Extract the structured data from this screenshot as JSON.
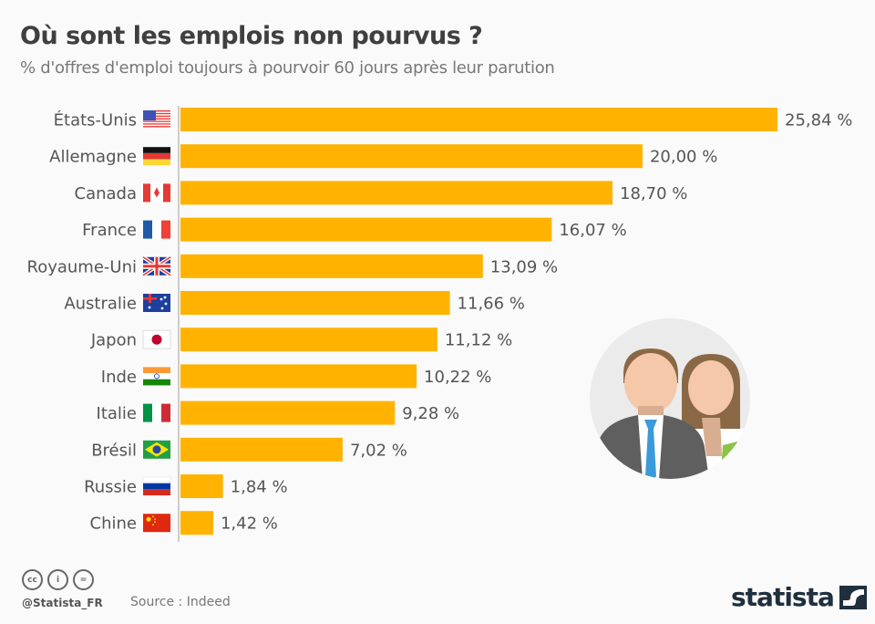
{
  "header": {
    "title": "Où sont les emplois non pourvus ?",
    "subtitle": "% d'offres d'emploi toujours à pourvoir 60 jours après leur parution"
  },
  "colors": {
    "bar": "#ffb300",
    "text": "#555555",
    "axis": "#cccccc"
  },
  "chart_data": {
    "type": "bar",
    "orientation": "horizontal",
    "title": "Où sont les emplois non pourvus ?",
    "subtitle": "% d'offres d'emploi toujours à pourvoir 60 jours après leur parution",
    "xlabel": "",
    "ylabel": "",
    "categories": [
      "États-Unis",
      "Allemagne",
      "Canada",
      "France",
      "Royaume-Uni",
      "Australie",
      "Japon",
      "Inde",
      "Italie",
      "Brésil",
      "Russie",
      "Chine"
    ],
    "flags": [
      "us-flag",
      "germany-flag",
      "canada-flag",
      "france-flag",
      "uk-flag",
      "australia-flag",
      "japan-flag",
      "india-flag",
      "italy-flag",
      "brazil-flag",
      "russia-flag",
      "china-flag"
    ],
    "values": [
      25.84,
      20.0,
      18.7,
      16.07,
      13.09,
      11.66,
      11.12,
      10.22,
      9.28,
      7.02,
      1.84,
      1.42
    ],
    "labels": [
      "25,84 %",
      "20,00 %",
      "18,70 %",
      "16,07 %",
      "13,09 %",
      "11,66 %",
      "11,12 %",
      "10,22 %",
      "9,28 %",
      "7,02 %",
      "1,84 %",
      "1,42 %"
    ],
    "xlim": [
      0,
      25.84
    ],
    "grid": false,
    "legend": "none"
  },
  "footer": {
    "license_icons": [
      "cc-icon",
      "by-icon",
      "nd-icon"
    ],
    "license_glyphs": [
      "cc",
      "i",
      "="
    ],
    "handle": "@Statista_FR",
    "source": "Source : Indeed",
    "brand": "statista"
  }
}
